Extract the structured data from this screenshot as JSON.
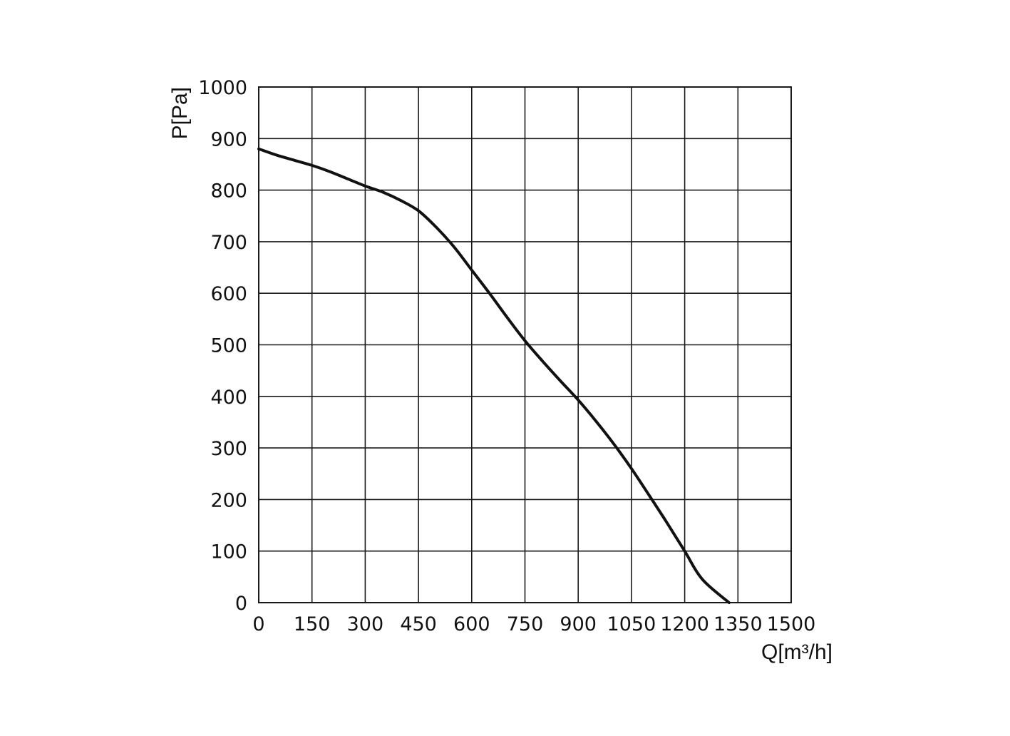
{
  "chart_data": {
    "type": "line",
    "title": "",
    "xlabel": "Q[m³/h]",
    "ylabel": "P[Pa]",
    "xlim": [
      0,
      1500
    ],
    "ylim": [
      0,
      1000
    ],
    "x_ticks": [
      "0",
      "150",
      "300",
      "450",
      "600",
      "750",
      "900",
      "1050",
      "1200",
      "1350",
      "1500"
    ],
    "y_ticks": [
      "0",
      "100",
      "200",
      "300",
      "400",
      "500",
      "600",
      "700",
      "800",
      "900",
      "1000"
    ],
    "grid": true,
    "legend": "none",
    "series": [
      {
        "color": "#111111",
        "points": [
          [
            0,
            880
          ],
          [
            50,
            868
          ],
          [
            100,
            858
          ],
          [
            150,
            848
          ],
          [
            200,
            836
          ],
          [
            250,
            822
          ],
          [
            300,
            808
          ],
          [
            350,
            796
          ],
          [
            400,
            780
          ],
          [
            450,
            760
          ],
          [
            500,
            728
          ],
          [
            550,
            690
          ],
          [
            600,
            645
          ],
          [
            650,
            600
          ],
          [
            700,
            553
          ],
          [
            750,
            508
          ],
          [
            800,
            468
          ],
          [
            850,
            430
          ],
          [
            900,
            393
          ],
          [
            950,
            352
          ],
          [
            1000,
            308
          ],
          [
            1050,
            260
          ],
          [
            1100,
            208
          ],
          [
            1150,
            155
          ],
          [
            1200,
            100
          ],
          [
            1250,
            45
          ],
          [
            1325,
            0
          ]
        ]
      }
    ]
  }
}
